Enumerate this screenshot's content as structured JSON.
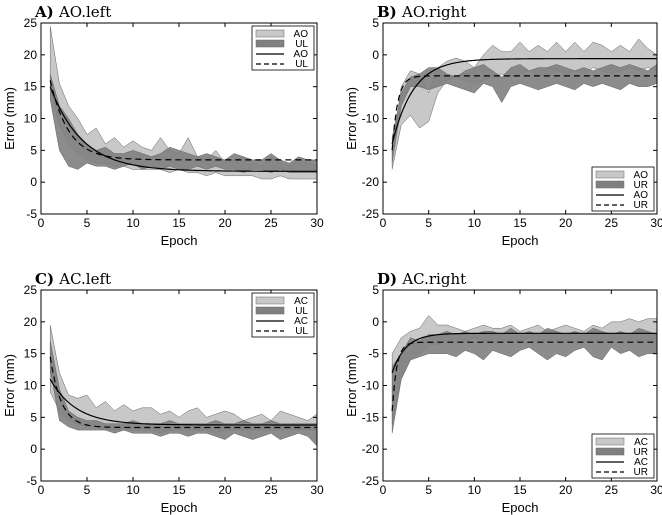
{
  "chart_data": [
    {
      "type": "area",
      "panel_letter": "A)",
      "title": "AO.left",
      "xlabel": "Epoch",
      "ylabel": "Error (mm)",
      "xlim": [
        0,
        30
      ],
      "ylim": [
        -5,
        25
      ],
      "xticks": [
        "0",
        "5",
        "10",
        "15",
        "20",
        "25",
        "30"
      ],
      "yticks": [
        "-5",
        "0",
        "5",
        "10",
        "15",
        "20",
        "25"
      ],
      "legend_position": "top-right",
      "colors": {
        "band_light": "#c8c8c8",
        "band_dark": "#808080",
        "line": "#000000"
      },
      "series": [
        {
          "name": "AO",
          "kind": "band-light",
          "upper": [
            24.5,
            15.5,
            12.0,
            10.0,
            7.5,
            8.5,
            6.0,
            7.0,
            5.5,
            6.5,
            5.5,
            5.0,
            7.0,
            5.0,
            4.5,
            7.0,
            4.0,
            3.5,
            5.0,
            3.0,
            3.5,
            4.0,
            3.0,
            2.5,
            4.0,
            3.0,
            2.5,
            3.5,
            3.0,
            2.5
          ],
          "lower": [
            15.0,
            9.0,
            6.0,
            4.5,
            3.5,
            3.0,
            3.0,
            2.5,
            2.5,
            2.0,
            2.0,
            2.0,
            2.0,
            1.5,
            2.0,
            1.5,
            1.5,
            1.0,
            1.5,
            1.0,
            1.0,
            1.0,
            1.0,
            0.5,
            0.5,
            1.0,
            0.5,
            0.5,
            0.5,
            0.5
          ]
        },
        {
          "name": "UL",
          "kind": "band-dark",
          "upper": [
            17.0,
            12.0,
            10.0,
            7.5,
            6.0,
            5.0,
            5.5,
            4.5,
            4.5,
            5.0,
            4.5,
            4.0,
            4.5,
            5.5,
            5.0,
            4.5,
            4.0,
            4.5,
            4.0,
            3.5,
            4.5,
            4.0,
            3.5,
            3.5,
            4.5,
            3.5,
            3.0,
            4.0,
            3.5,
            3.5
          ],
          "lower": [
            13.0,
            5.0,
            2.5,
            2.0,
            3.0,
            2.5,
            2.5,
            2.0,
            2.5,
            3.0,
            2.0,
            2.5,
            2.0,
            2.5,
            2.0,
            2.0,
            2.5,
            2.0,
            2.5,
            2.0,
            2.0,
            1.5,
            2.0,
            2.0,
            1.5,
            2.0,
            1.5,
            1.5,
            1.5,
            1.5
          ]
        },
        {
          "name": "AO",
          "kind": "solid",
          "fit": {
            "start": 15.0,
            "end": 1.7,
            "tau": 3.5
          }
        },
        {
          "name": "UL",
          "kind": "dashed",
          "fit": {
            "start": 16.0,
            "end": 3.5,
            "tau": 2.0
          }
        }
      ]
    },
    {
      "type": "area",
      "panel_letter": "B)",
      "title": "AO.right",
      "xlabel": "Epoch",
      "ylabel": "Error (mm)",
      "xlim": [
        0,
        30
      ],
      "ylim": [
        -25,
        5
      ],
      "xticks": [
        "0",
        "5",
        "10",
        "15",
        "20",
        "25",
        "30"
      ],
      "yticks": [
        "-25",
        "-20",
        "-15",
        "-10",
        "-5",
        "0",
        "5"
      ],
      "legend_position": "bottom-right",
      "colors": {
        "band_light": "#c8c8c8",
        "band_dark": "#808080",
        "line": "#000000"
      },
      "series": [
        {
          "name": "AO",
          "kind": "band-light",
          "upper": [
            -15.0,
            -5.0,
            -2.5,
            -3.0,
            -6.0,
            -2.0,
            -1.0,
            -0.5,
            -1.0,
            -2.0,
            0.0,
            1.5,
            0.5,
            0.5,
            2.0,
            0.5,
            1.5,
            0.5,
            2.0,
            0.5,
            2.0,
            0.5,
            2.0,
            1.5,
            0.5,
            1.5,
            0.5,
            2.5,
            1.0,
            0.0
          ],
          "lower": [
            -18.0,
            -11.0,
            -9.5,
            -11.5,
            -10.5,
            -6.0,
            -4.0,
            -3.5,
            -4.0,
            -4.5,
            -4.0,
            -3.5,
            -3.0,
            -3.5,
            -3.0,
            -2.5,
            -3.0,
            -3.5,
            -2.5,
            -3.0,
            -2.5,
            -3.0,
            -2.0,
            -2.5,
            -3.0,
            -2.5,
            -2.0,
            -2.5,
            -2.0,
            -2.5
          ]
        },
        {
          "name": "UR",
          "kind": "band-dark",
          "upper": [
            -13.0,
            -6.0,
            -3.5,
            -3.0,
            -2.0,
            -2.0,
            -3.0,
            -3.5,
            -2.5,
            -2.0,
            -1.5,
            -2.5,
            -3.5,
            -2.0,
            -1.5,
            -2.5,
            -2.0,
            -2.0,
            -1.5,
            -2.0,
            -2.5,
            -2.0,
            -2.5,
            -2.0,
            -1.5,
            -2.0,
            -1.5,
            -2.0,
            -2.5,
            -1.5
          ],
          "lower": [
            -17.0,
            -8.0,
            -5.0,
            -5.0,
            -5.5,
            -5.0,
            -4.5,
            -5.0,
            -5.5,
            -6.0,
            -4.5,
            -5.0,
            -7.5,
            -5.0,
            -4.5,
            -5.0,
            -5.5,
            -5.0,
            -4.5,
            -5.0,
            -5.5,
            -4.5,
            -5.0,
            -4.5,
            -5.0,
            -5.5,
            -4.5,
            -5.0,
            -5.0,
            -4.5
          ]
        },
        {
          "name": "AO",
          "kind": "solid",
          "fit": {
            "start": -14.0,
            "end": -0.6,
            "tau": 2.3
          }
        },
        {
          "name": "UR",
          "kind": "dashed",
          "fit": {
            "start": -15.0,
            "end": -3.3,
            "tau": 0.6
          }
        }
      ]
    },
    {
      "type": "area",
      "panel_letter": "C)",
      "title": "AC.left",
      "xlabel": "Epoch",
      "ylabel": "Error (mm)",
      "xlim": [
        0,
        30
      ],
      "ylim": [
        -5,
        25
      ],
      "xticks": [
        "0",
        "5",
        "10",
        "15",
        "20",
        "25",
        "30"
      ],
      "yticks": [
        "-5",
        "0",
        "5",
        "10",
        "15",
        "20",
        "25"
      ],
      "legend_position": "top-right",
      "colors": {
        "band_light": "#c8c8c8",
        "band_dark": "#808080",
        "line": "#000000"
      },
      "series": [
        {
          "name": "AC",
          "kind": "band-light",
          "upper": [
            19.5,
            12.0,
            8.5,
            8.0,
            8.5,
            6.5,
            7.5,
            6.0,
            7.0,
            6.0,
            6.5,
            6.5,
            5.5,
            6.0,
            5.0,
            6.0,
            6.5,
            5.0,
            5.5,
            6.0,
            5.5,
            4.5,
            5.0,
            5.5,
            4.5,
            6.0,
            5.5,
            5.0,
            4.5,
            5.5
          ],
          "lower": [
            9.0,
            6.0,
            4.5,
            4.0,
            3.5,
            3.5,
            3.0,
            3.0,
            3.0,
            3.0,
            3.0,
            3.0,
            2.5,
            3.0,
            3.0,
            3.0,
            3.0,
            3.0,
            2.5,
            3.0,
            3.0,
            3.0,
            3.0,
            3.0,
            3.0,
            3.0,
            3.0,
            3.0,
            3.0,
            3.0
          ]
        },
        {
          "name": "UL",
          "kind": "band-dark",
          "upper": [
            17.0,
            9.5,
            6.0,
            5.0,
            4.5,
            4.5,
            4.0,
            4.0,
            4.0,
            4.5,
            4.0,
            4.0,
            4.0,
            4.5,
            4.0,
            4.0,
            4.0,
            4.0,
            4.5,
            4.0,
            4.0,
            4.5,
            4.0,
            4.0,
            4.5,
            4.0,
            4.0,
            4.0,
            4.0,
            4.0
          ],
          "lower": [
            12.5,
            4.5,
            3.5,
            3.0,
            3.0,
            3.0,
            3.0,
            2.5,
            3.0,
            2.5,
            2.5,
            2.5,
            2.0,
            2.5,
            2.5,
            2.0,
            2.5,
            2.5,
            2.0,
            1.5,
            2.5,
            2.0,
            1.5,
            2.0,
            2.5,
            1.5,
            2.0,
            2.5,
            2.0,
            0.5
          ]
        },
        {
          "name": "AC",
          "kind": "solid",
          "fit": {
            "start": 11.0,
            "end": 3.8,
            "tau": 2.8
          }
        },
        {
          "name": "UL",
          "kind": "dashed",
          "fit": {
            "start": 14.5,
            "end": 3.4,
            "tau": 1.2
          }
        }
      ]
    },
    {
      "type": "area",
      "panel_letter": "D)",
      "title": "AC.right",
      "xlabel": "Epoch",
      "ylabel": "Error (mm)",
      "xlim": [
        0,
        30
      ],
      "ylim": [
        -25,
        5
      ],
      "xticks": [
        "0",
        "5",
        "10",
        "15",
        "20",
        "25",
        "30"
      ],
      "yticks": [
        "-25",
        "-20",
        "-15",
        "-10",
        "-5",
        "0",
        "5"
      ],
      "legend_position": "bottom-right",
      "colors": {
        "band_light": "#c8c8c8",
        "band_dark": "#808080",
        "line": "#000000"
      },
      "series": [
        {
          "name": "AC",
          "kind": "band-light",
          "upper": [
            -5.0,
            -2.5,
            -1.5,
            -1.0,
            1.0,
            -0.5,
            -0.5,
            -1.0,
            -1.5,
            -1.0,
            -0.5,
            -1.0,
            -1.0,
            -0.5,
            -1.5,
            -1.0,
            -0.5,
            -1.5,
            -1.0,
            -0.5,
            -1.0,
            -1.5,
            -0.5,
            -1.0,
            0.0,
            0.0,
            0.5,
            0.0,
            0.5,
            0.5
          ],
          "lower": [
            -16.0,
            -9.0,
            -6.0,
            -5.0,
            -3.5,
            -3.5,
            -3.0,
            -3.0,
            -3.0,
            -2.5,
            -3.0,
            -3.0,
            -3.0,
            -3.0,
            -3.0,
            -2.5,
            -3.0,
            -3.0,
            -3.0,
            -3.0,
            -3.0,
            -3.0,
            -3.0,
            -3.0,
            -3.0,
            -2.5,
            -3.0,
            -3.0,
            -3.0,
            -3.0
          ]
        },
        {
          "name": "UR",
          "kind": "band-dark",
          "upper": [
            -7.0,
            -5.0,
            -2.5,
            -3.0,
            -2.0,
            -2.0,
            -1.5,
            -2.0,
            -1.5,
            -2.0,
            -1.5,
            -1.5,
            -2.0,
            -1.0,
            -2.0,
            -1.5,
            -2.0,
            -1.0,
            -1.5,
            -2.0,
            -1.5,
            -2.0,
            -1.0,
            -1.5,
            -2.0,
            -1.5,
            -2.0,
            -1.0,
            -1.5,
            -2.0
          ],
          "lower": [
            -17.5,
            -9.0,
            -6.0,
            -5.5,
            -5.0,
            -5.0,
            -5.0,
            -5.5,
            -4.5,
            -5.0,
            -6.0,
            -4.5,
            -5.0,
            -5.5,
            -4.5,
            -4.0,
            -5.0,
            -6.0,
            -5.0,
            -5.5,
            -4.5,
            -4.0,
            -5.5,
            -6.0,
            -4.0,
            -5.0,
            -4.5,
            -5.5,
            -5.0,
            -5.0
          ]
        },
        {
          "name": "AC",
          "kind": "solid",
          "fit": {
            "start": -8.0,
            "end": -1.8,
            "tau": 1.5
          }
        },
        {
          "name": "UR",
          "kind": "dashed",
          "fit": {
            "start": -14.0,
            "end": -3.2,
            "tau": 0.5
          }
        }
      ]
    }
  ]
}
